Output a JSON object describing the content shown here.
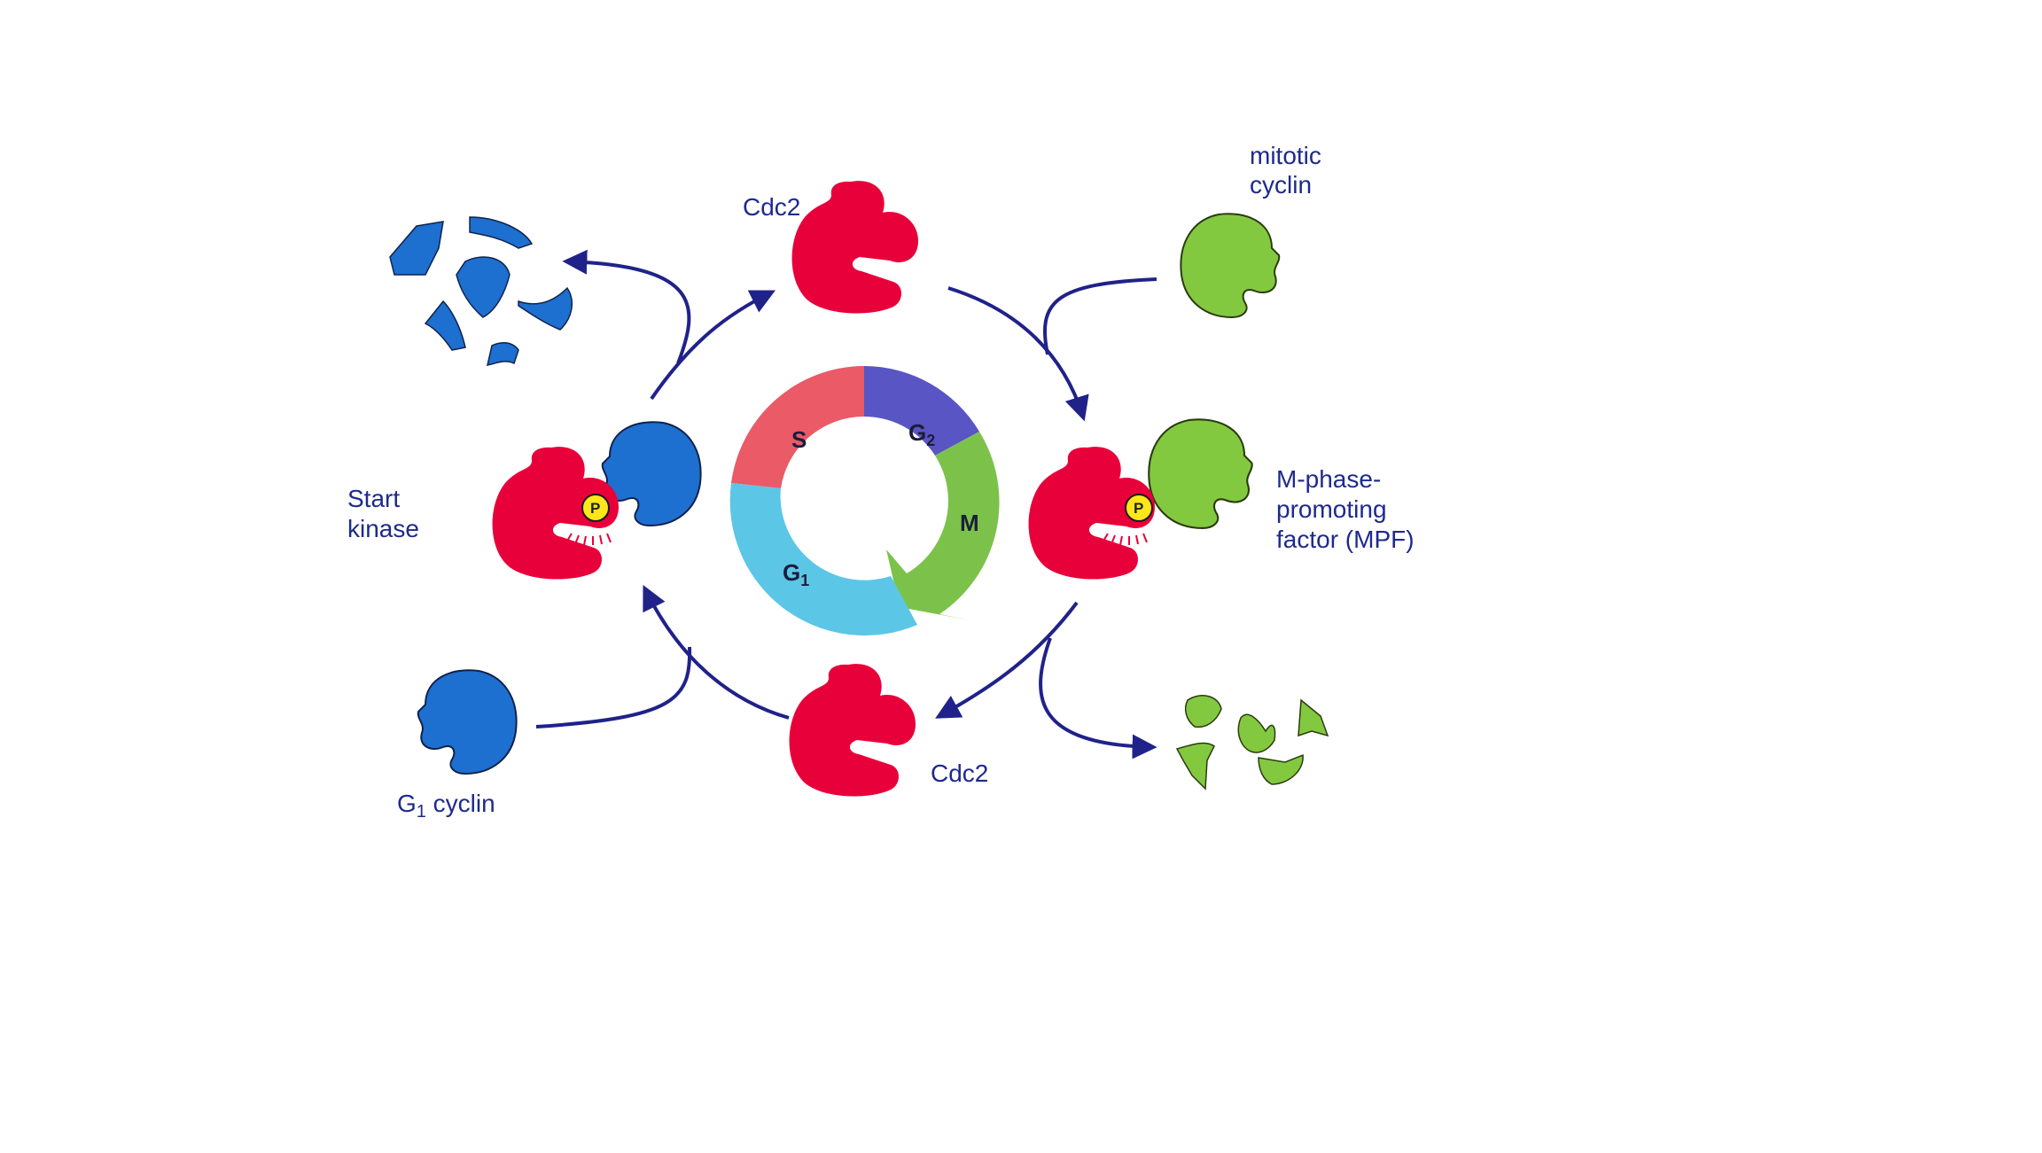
{
  "colors": {
    "cdc2": "#e8003a",
    "g1_cyclin": "#1d6fd0",
    "mitotic_cyclin": "#82c93f",
    "arrow": "#20228a",
    "label": "#1e2a8c",
    "phase_S": "#ea5a67",
    "phase_G2": "#5a55c4",
    "phase_M": "#7cc24a",
    "phase_G1": "#5cc6e6",
    "phosphate": "#ffe61a"
  },
  "labels": {
    "cdc2_top": "Cdc2",
    "cdc2_bottom": "Cdc2",
    "mitotic_cyclin": [
      "mitotic",
      "cyclin"
    ],
    "mpf": [
      "M-phase-",
      "promoting",
      "factor (MPF)"
    ],
    "start_kinase": [
      "Start",
      "kinase"
    ],
    "g1_cyclin_prefix": "G",
    "g1_cyclin_sub": "1",
    "g1_cyclin_suffix": " cyclin",
    "phosphate": "P"
  },
  "cycle_phases": {
    "S": "S",
    "G2_main": "G",
    "G2_sub": "2",
    "M": "M",
    "G1_main": "G",
    "G1_sub": "1"
  },
  "icons": [
    "cdc2-kinase",
    "g1-cyclin",
    "mitotic-cyclin",
    "phosphate",
    "degraded-fragments",
    "cycle-ring"
  ]
}
